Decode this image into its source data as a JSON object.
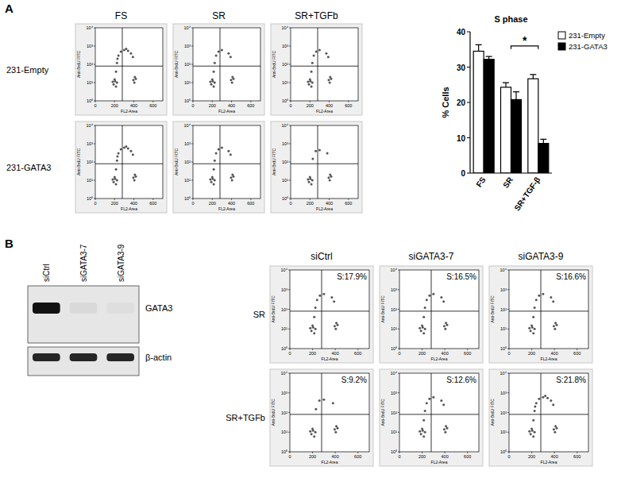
{
  "panel_labels": [
    "A",
    "B"
  ],
  "panel_a": {
    "columns": [
      "FS",
      "SR",
      "SR+TGFb"
    ],
    "rows": [
      "231-Empty",
      "231-GATA3"
    ]
  },
  "panel_b": {
    "columns": [
      "siCtrl",
      "siGATA3-7",
      "siGATA3-9"
    ],
    "rows": [
      "SR",
      "SR+TGFb"
    ]
  },
  "blot": {
    "lanes": [
      "siCtrl",
      "siGATA3-7",
      "siGATA3-9"
    ],
    "bands": [
      {
        "name": "GATA3",
        "intensity": [
          1,
          0.06,
          0.04
        ]
      },
      {
        "name": "β-actin",
        "intensity": [
          0.9,
          0.9,
          0.9
        ]
      }
    ]
  },
  "chart_data": [
    {
      "type": "scatter",
      "x_label": "FL2-Area",
      "y_label": "Anti-BrdU FITC",
      "log": "y",
      "xlim": [
        0,
        700
      ],
      "xticks": [
        0,
        200,
        400,
        600
      ],
      "ylim": [
        1,
        10000
      ],
      "yticks": [
        {
          "value": 1,
          "label": "10⁰"
        },
        {
          "value": 10,
          "label": "10¹"
        },
        {
          "value": 100,
          "label": "10²"
        },
        {
          "value": 1000,
          "label": "10³"
        },
        {
          "value": 10000,
          "label": "10⁴"
        }
      ],
      "gate_x": 280,
      "gate_y": 80,
      "x": [
        180,
        190,
        200,
        205,
        215,
        225,
        215,
        225,
        240,
        265,
        300,
        340,
        370,
        390,
        230,
        320,
        395,
        405,
        410,
        420
      ],
      "values": [
        11,
        8,
        15,
        12,
        6,
        10,
        40,
        120,
        300,
        500,
        600,
        550,
        400,
        250,
        200,
        700,
        14,
        10,
        20,
        16
      ]
    },
    {
      "type": "scatter",
      "x_label": "FL2-Area",
      "y_label": "Anti-BrdU FITC",
      "log": "y",
      "xlim": [
        0,
        700
      ],
      "xticks": [
        0,
        200,
        400,
        600
      ],
      "ylim": [
        1,
        10000
      ],
      "yticks": [
        {
          "value": 1,
          "label": "10⁰"
        },
        {
          "value": 10,
          "label": "10¹"
        },
        {
          "value": 100,
          "label": "10²"
        },
        {
          "value": 1000,
          "label": "10³"
        },
        {
          "value": 10000,
          "label": "10⁴"
        }
      ],
      "gate_x": 280,
      "gate_y": 80,
      "x": [
        180,
        190,
        200,
        205,
        215,
        225,
        215,
        225,
        240,
        265,
        300,
        370,
        390,
        395,
        405,
        410,
        420
      ],
      "values": [
        11,
        8,
        15,
        12,
        6,
        10,
        40,
        120,
        300,
        500,
        600,
        400,
        250,
        14,
        10,
        20,
        16
      ]
    },
    {
      "type": "scatter",
      "x_label": "FL2-Area",
      "y_label": "Anti-BrdU FITC",
      "log": "y",
      "xlim": [
        0,
        700
      ],
      "xticks": [
        0,
        200,
        400,
        600
      ],
      "ylim": [
        1,
        10000
      ],
      "yticks": [
        {
          "value": 1,
          "label": "10⁰"
        },
        {
          "value": 10,
          "label": "10¹"
        },
        {
          "value": 100,
          "label": "10²"
        },
        {
          "value": 1000,
          "label": "10³"
        },
        {
          "value": 10000,
          "label": "10⁴"
        }
      ],
      "gate_x": 280,
      "gate_y": 80,
      "x": [
        180,
        190,
        200,
        205,
        215,
        225,
        215,
        225,
        240,
        265,
        300,
        370,
        390,
        395,
        405,
        410,
        420
      ],
      "values": [
        11,
        8,
        15,
        12,
        6,
        10,
        40,
        120,
        300,
        500,
        600,
        400,
        250,
        14,
        10,
        20,
        16
      ]
    },
    {
      "type": "scatter",
      "x_label": "FL2-Area",
      "y_label": "Anti-BrdU FITC",
      "log": "y",
      "xlim": [
        0,
        700
      ],
      "xticks": [
        0,
        200,
        400,
        600
      ],
      "ylim": [
        1,
        10000
      ],
      "yticks": [
        {
          "value": 1,
          "label": "10⁰"
        },
        {
          "value": 10,
          "label": "10¹"
        },
        {
          "value": 100,
          "label": "10²"
        },
        {
          "value": 1000,
          "label": "10³"
        },
        {
          "value": 10000,
          "label": "10⁴"
        }
      ],
      "gate_x": 280,
      "gate_y": 80,
      "x": [
        180,
        190,
        200,
        205,
        215,
        225,
        215,
        225,
        240,
        265,
        300,
        340,
        370,
        390,
        230,
        320,
        395,
        405,
        410,
        420
      ],
      "values": [
        11,
        8,
        15,
        12,
        6,
        10,
        40,
        120,
        300,
        500,
        600,
        550,
        400,
        250,
        200,
        700,
        14,
        10,
        20,
        16
      ]
    },
    {
      "type": "scatter",
      "x_label": "FL2-Area",
      "y_label": "Anti-BrdU FITC",
      "log": "y",
      "xlim": [
        0,
        700
      ],
      "xticks": [
        0,
        200,
        400,
        600
      ],
      "ylim": [
        1,
        10000
      ],
      "yticks": [
        {
          "value": 1,
          "label": "10⁰"
        },
        {
          "value": 10,
          "label": "10¹"
        },
        {
          "value": 100,
          "label": "10²"
        },
        {
          "value": 1000,
          "label": "10³"
        },
        {
          "value": 10000,
          "label": "10⁴"
        }
      ],
      "gate_x": 280,
      "gate_y": 80,
      "x": [
        180,
        190,
        200,
        205,
        215,
        225,
        215,
        225,
        240,
        265,
        300,
        370,
        390,
        395,
        405,
        410,
        420
      ],
      "values": [
        11,
        8,
        15,
        12,
        6,
        10,
        40,
        120,
        300,
        500,
        600,
        400,
        250,
        14,
        10,
        20,
        16
      ]
    },
    {
      "type": "scatter",
      "x_label": "FL2-Area",
      "y_label": "Anti-BrdU FITC",
      "log": "y",
      "xlim": [
        0,
        700
      ],
      "xticks": [
        0,
        200,
        400,
        600
      ],
      "ylim": [
        1,
        10000
      ],
      "yticks": [
        {
          "value": 1,
          "label": "10⁰"
        },
        {
          "value": 10,
          "label": "10¹"
        },
        {
          "value": 100,
          "label": "10²"
        },
        {
          "value": 1000,
          "label": "10³"
        },
        {
          "value": 10000,
          "label": "10⁴"
        }
      ],
      "gate_x": 280,
      "gate_y": 80,
      "x": [
        180,
        190,
        200,
        205,
        215,
        225,
        230,
        260,
        300,
        380,
        395,
        405,
        410,
        420
      ],
      "values": [
        11,
        8,
        15,
        12,
        6,
        10,
        150,
        400,
        450,
        300,
        14,
        10,
        20,
        16
      ]
    },
    {
      "type": "scatter",
      "x_label": "FL2-Area",
      "y_label": "Anti-BrdU FITC",
      "log": "y",
      "xlim": [
        0,
        700
      ],
      "xticks": [
        0,
        200,
        400,
        600
      ],
      "ylim": [
        1,
        10000
      ],
      "yticks": [
        {
          "value": 1,
          "label": "10⁰"
        },
        {
          "value": 10,
          "label": "10¹"
        },
        {
          "value": 100,
          "label": "10²"
        },
        {
          "value": 1000,
          "label": "10³"
        },
        {
          "value": 10000,
          "label": "10⁴"
        }
      ],
      "gate_x": 280,
      "gate_y": 80,
      "annotation": "S:17.9%",
      "x": [
        180,
        190,
        200,
        205,
        215,
        225,
        215,
        225,
        240,
        265,
        300,
        370,
        390,
        395,
        405,
        410,
        420
      ],
      "values": [
        11,
        8,
        15,
        12,
        6,
        10,
        40,
        120,
        300,
        500,
        600,
        400,
        250,
        14,
        10,
        20,
        16
      ]
    },
    {
      "type": "scatter",
      "x_label": "FL2-Area",
      "y_label": "Anti-BrdU FITC",
      "log": "y",
      "xlim": [
        0,
        700
      ],
      "xticks": [
        0,
        200,
        400,
        600
      ],
      "ylim": [
        1,
        10000
      ],
      "yticks": [
        {
          "value": 1,
          "label": "10⁰"
        },
        {
          "value": 10,
          "label": "10¹"
        },
        {
          "value": 100,
          "label": "10²"
        },
        {
          "value": 1000,
          "label": "10³"
        },
        {
          "value": 10000,
          "label": "10⁴"
        }
      ],
      "gate_x": 280,
      "gate_y": 80,
      "annotation": "S:16.5%",
      "x": [
        180,
        190,
        200,
        205,
        215,
        225,
        215,
        225,
        240,
        265,
        300,
        370,
        390,
        395,
        405,
        410,
        420
      ],
      "values": [
        11,
        8,
        15,
        12,
        6,
        10,
        40,
        120,
        300,
        500,
        600,
        400,
        250,
        14,
        10,
        20,
        16
      ]
    },
    {
      "type": "scatter",
      "x_label": "FL2-Area",
      "y_label": "Anti-BrdU FITC",
      "log": "y",
      "xlim": [
        0,
        700
      ],
      "xticks": [
        0,
        200,
        400,
        600
      ],
      "ylim": [
        1,
        10000
      ],
      "yticks": [
        {
          "value": 1,
          "label": "10⁰"
        },
        {
          "value": 10,
          "label": "10¹"
        },
        {
          "value": 100,
          "label": "10²"
        },
        {
          "value": 1000,
          "label": "10³"
        },
        {
          "value": 10000,
          "label": "10⁴"
        }
      ],
      "gate_x": 280,
      "gate_y": 80,
      "annotation": "S:16.6%",
      "x": [
        180,
        190,
        200,
        205,
        215,
        225,
        215,
        225,
        240,
        265,
        300,
        370,
        390,
        395,
        405,
        410,
        420
      ],
      "values": [
        11,
        8,
        15,
        12,
        6,
        10,
        40,
        120,
        300,
        500,
        600,
        400,
        250,
        14,
        10,
        20,
        16
      ]
    },
    {
      "type": "scatter",
      "x_label": "FL2-Area",
      "y_label": "Anti-BrdU FITC",
      "log": "y",
      "xlim": [
        0,
        700
      ],
      "xticks": [
        0,
        200,
        400,
        600
      ],
      "ylim": [
        1,
        10000
      ],
      "yticks": [
        {
          "value": 1,
          "label": "10⁰"
        },
        {
          "value": 10,
          "label": "10¹"
        },
        {
          "value": 100,
          "label": "10²"
        },
        {
          "value": 1000,
          "label": "10³"
        },
        {
          "value": 10000,
          "label": "10⁴"
        }
      ],
      "gate_x": 280,
      "gate_y": 80,
      "annotation": "S:9.2%",
      "x": [
        180,
        190,
        200,
        205,
        215,
        225,
        230,
        260,
        300,
        380,
        395,
        405,
        410,
        420
      ],
      "values": [
        11,
        8,
        15,
        12,
        6,
        10,
        150,
        400,
        450,
        300,
        14,
        10,
        20,
        16
      ]
    },
    {
      "type": "scatter",
      "x_label": "FL2-Area",
      "y_label": "Anti-BrdU FITC",
      "log": "y",
      "xlim": [
        0,
        700
      ],
      "xticks": [
        0,
        200,
        400,
        600
      ],
      "ylim": [
        1,
        10000
      ],
      "yticks": [
        {
          "value": 1,
          "label": "10⁰"
        },
        {
          "value": 10,
          "label": "10¹"
        },
        {
          "value": 100,
          "label": "10²"
        },
        {
          "value": 1000,
          "label": "10³"
        },
        {
          "value": 10000,
          "label": "10⁴"
        }
      ],
      "gate_x": 280,
      "gate_y": 80,
      "annotation": "S:12.6%",
      "x": [
        180,
        190,
        200,
        205,
        215,
        225,
        215,
        225,
        240,
        265,
        300,
        370,
        390,
        395,
        405,
        410,
        420
      ],
      "values": [
        11,
        8,
        15,
        12,
        6,
        10,
        40,
        120,
        300,
        500,
        600,
        400,
        250,
        14,
        10,
        20,
        16
      ]
    },
    {
      "type": "scatter",
      "x_label": "FL2-Area",
      "y_label": "Anti-BrdU FITC",
      "log": "y",
      "xlim": [
        0,
        700
      ],
      "xticks": [
        0,
        200,
        400,
        600
      ],
      "ylim": [
        1,
        10000
      ],
      "yticks": [
        {
          "value": 1,
          "label": "10⁰"
        },
        {
          "value": 10,
          "label": "10¹"
        },
        {
          "value": 100,
          "label": "10²"
        },
        {
          "value": 1000,
          "label": "10³"
        },
        {
          "value": 10000,
          "label": "10⁴"
        }
      ],
      "gate_x": 280,
      "gate_y": 80,
      "annotation": "S:21.8%",
      "x": [
        180,
        190,
        200,
        205,
        215,
        225,
        215,
        225,
        240,
        265,
        300,
        340,
        370,
        390,
        230,
        320,
        395,
        405,
        410,
        420
      ],
      "values": [
        11,
        8,
        15,
        12,
        6,
        10,
        40,
        120,
        300,
        500,
        600,
        550,
        400,
        250,
        200,
        700,
        14,
        10,
        20,
        16
      ]
    },
    {
      "type": "bar",
      "title": "S phase",
      "y_label": "% Cells",
      "categories": [
        "FS",
        "SR",
        "SR+TGF-β"
      ],
      "ylim": [
        0,
        40
      ],
      "yticks": [
        0,
        10,
        20,
        30,
        40
      ],
      "grid": false,
      "legend": "right",
      "series": [
        {
          "name": "231-Empty",
          "color": "#ffffff",
          "values": [
            34.5,
            24.3,
            26.7
          ],
          "error": [
            1.8,
            1.3,
            1.2
          ]
        },
        {
          "name": "231-GATA3",
          "color": "#000000",
          "values": [
            32.2,
            20.8,
            8.4
          ],
          "error": [
            0.8,
            2.2,
            1.2
          ]
        }
      ],
      "significance": {
        "text": "*",
        "between": [
          "SR",
          "SR+TGF-β"
        ],
        "y": 36
      }
    }
  ]
}
